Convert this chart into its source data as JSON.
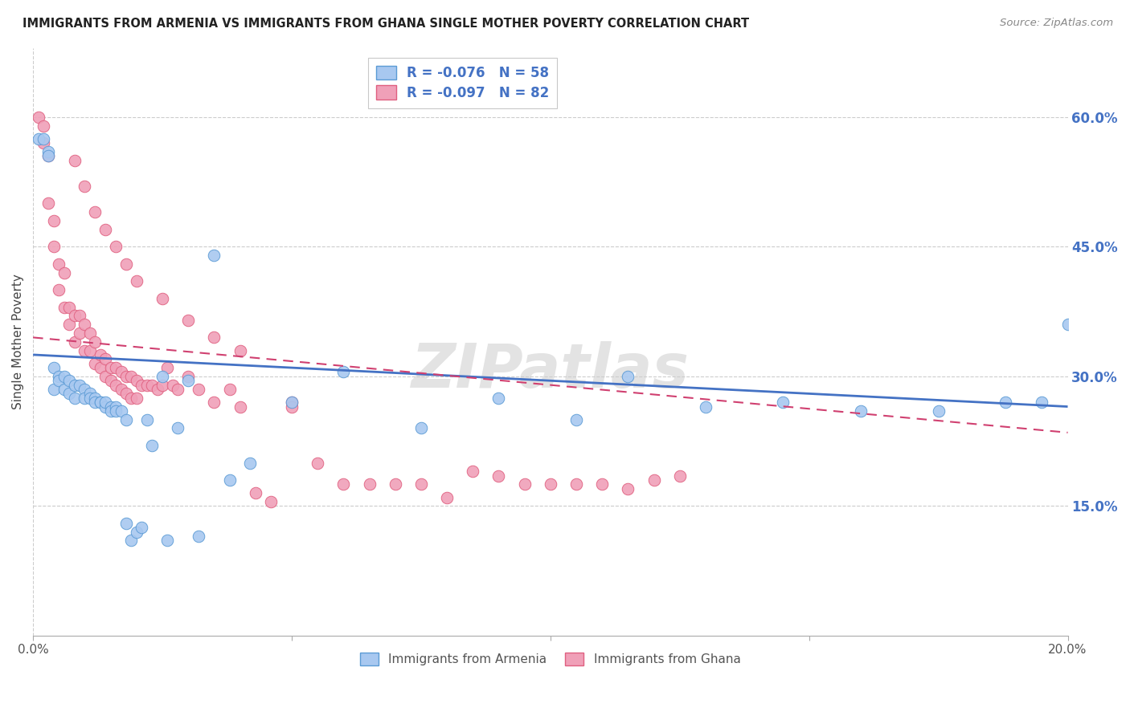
{
  "title": "IMMIGRANTS FROM ARMENIA VS IMMIGRANTS FROM GHANA SINGLE MOTHER POVERTY CORRELATION CHART",
  "source": "Source: ZipAtlas.com",
  "ylabel": "Single Mother Poverty",
  "xlim": [
    0.0,
    0.2
  ],
  "ylim": [
    0.0,
    0.68
  ],
  "yticks_right": [
    0.6,
    0.45,
    0.3,
    0.15
  ],
  "ytick_labels": [
    "60.0%",
    "45.0%",
    "30.0%",
    "15.0%"
  ],
  "xticks": [
    0.0,
    0.05,
    0.1,
    0.15,
    0.2
  ],
  "xtick_labels_show": [
    "0.0%",
    "",
    "",
    "",
    "20.0%"
  ],
  "color_armenia": "#a8c8f0",
  "color_armenia_edge": "#5b9bd5",
  "color_ghana": "#f0a0b8",
  "color_ghana_edge": "#e06080",
  "color_armenia_line": "#4472c4",
  "color_ghana_line": "#d04070",
  "watermark": "ZIPatlas",
  "legend_label_1": "R = -0.076   N = 58",
  "legend_label_2": "R = -0.097   N = 82",
  "bottom_label_1": "Immigrants from Armenia",
  "bottom_label_2": "Immigrants from Ghana",
  "arm_line_x0": 0.0,
  "arm_line_x1": 0.2,
  "arm_line_y0": 0.325,
  "arm_line_y1": 0.265,
  "gha_line_x0": 0.0,
  "gha_line_x1": 0.2,
  "gha_line_y0": 0.345,
  "gha_line_y1": 0.235,
  "armenia_x": [
    0.001,
    0.002,
    0.003,
    0.003,
    0.004,
    0.004,
    0.005,
    0.005,
    0.006,
    0.006,
    0.007,
    0.007,
    0.008,
    0.008,
    0.009,
    0.01,
    0.01,
    0.011,
    0.011,
    0.012,
    0.012,
    0.013,
    0.013,
    0.014,
    0.014,
    0.015,
    0.015,
    0.016,
    0.016,
    0.017,
    0.018,
    0.018,
    0.019,
    0.02,
    0.021,
    0.022,
    0.023,
    0.025,
    0.026,
    0.028,
    0.03,
    0.032,
    0.035,
    0.038,
    0.042,
    0.05,
    0.06,
    0.075,
    0.09,
    0.105,
    0.115,
    0.13,
    0.145,
    0.16,
    0.175,
    0.188,
    0.195,
    0.2
  ],
  "armenia_y": [
    0.575,
    0.575,
    0.56,
    0.555,
    0.31,
    0.285,
    0.3,
    0.295,
    0.3,
    0.285,
    0.295,
    0.28,
    0.29,
    0.275,
    0.29,
    0.285,
    0.275,
    0.28,
    0.275,
    0.275,
    0.27,
    0.27,
    0.27,
    0.265,
    0.27,
    0.265,
    0.26,
    0.265,
    0.26,
    0.26,
    0.13,
    0.25,
    0.11,
    0.12,
    0.125,
    0.25,
    0.22,
    0.3,
    0.11,
    0.24,
    0.295,
    0.115,
    0.44,
    0.18,
    0.2,
    0.27,
    0.305,
    0.24,
    0.275,
    0.25,
    0.3,
    0.265,
    0.27,
    0.26,
    0.26,
    0.27,
    0.27,
    0.36
  ],
  "ghana_x": [
    0.001,
    0.002,
    0.002,
    0.003,
    0.003,
    0.004,
    0.004,
    0.005,
    0.005,
    0.006,
    0.006,
    0.007,
    0.007,
    0.008,
    0.008,
    0.009,
    0.009,
    0.01,
    0.01,
    0.011,
    0.011,
    0.012,
    0.012,
    0.013,
    0.013,
    0.014,
    0.014,
    0.015,
    0.015,
    0.016,
    0.016,
    0.017,
    0.017,
    0.018,
    0.018,
    0.019,
    0.019,
    0.02,
    0.02,
    0.021,
    0.022,
    0.023,
    0.024,
    0.025,
    0.026,
    0.027,
    0.028,
    0.03,
    0.032,
    0.035,
    0.038,
    0.04,
    0.043,
    0.046,
    0.05,
    0.055,
    0.06,
    0.065,
    0.07,
    0.075,
    0.08,
    0.085,
    0.09,
    0.095,
    0.1,
    0.105,
    0.11,
    0.115,
    0.12,
    0.125,
    0.008,
    0.01,
    0.012,
    0.014,
    0.016,
    0.018,
    0.02,
    0.025,
    0.03,
    0.035,
    0.04,
    0.05
  ],
  "ghana_y": [
    0.6,
    0.57,
    0.59,
    0.555,
    0.5,
    0.48,
    0.45,
    0.43,
    0.4,
    0.42,
    0.38,
    0.38,
    0.36,
    0.37,
    0.34,
    0.37,
    0.35,
    0.36,
    0.33,
    0.35,
    0.33,
    0.34,
    0.315,
    0.325,
    0.31,
    0.32,
    0.3,
    0.31,
    0.295,
    0.31,
    0.29,
    0.305,
    0.285,
    0.3,
    0.28,
    0.3,
    0.275,
    0.295,
    0.275,
    0.29,
    0.29,
    0.29,
    0.285,
    0.29,
    0.31,
    0.29,
    0.285,
    0.3,
    0.285,
    0.27,
    0.285,
    0.265,
    0.165,
    0.155,
    0.27,
    0.2,
    0.175,
    0.175,
    0.175,
    0.175,
    0.16,
    0.19,
    0.185,
    0.175,
    0.175,
    0.175,
    0.175,
    0.17,
    0.18,
    0.185,
    0.55,
    0.52,
    0.49,
    0.47,
    0.45,
    0.43,
    0.41,
    0.39,
    0.365,
    0.345,
    0.33,
    0.265
  ]
}
